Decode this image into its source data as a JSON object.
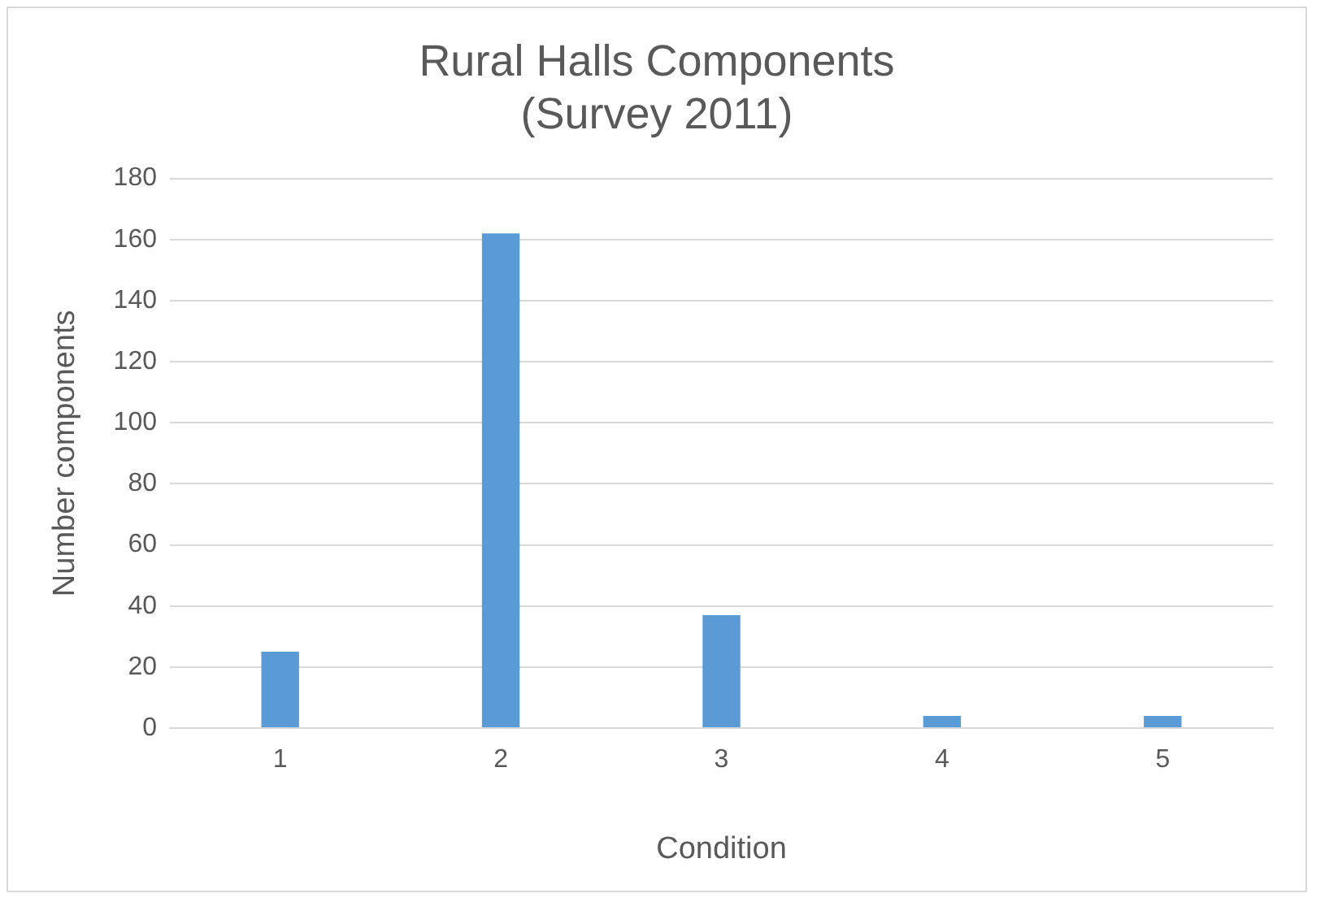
{
  "chart_data": {
    "type": "bar",
    "title": "Rural Halls Components\n(Survey 2011)",
    "xlabel": "Condition",
    "ylabel": "Number components",
    "categories": [
      "1",
      "2",
      "3",
      "4",
      "5"
    ],
    "values": [
      25,
      162,
      37,
      4,
      4
    ],
    "color": "#5b9bd5",
    "ylim": [
      0,
      180
    ],
    "yticks": [
      0,
      20,
      40,
      60,
      80,
      100,
      120,
      140,
      160,
      180
    ],
    "grid": "y",
    "legend": false
  }
}
